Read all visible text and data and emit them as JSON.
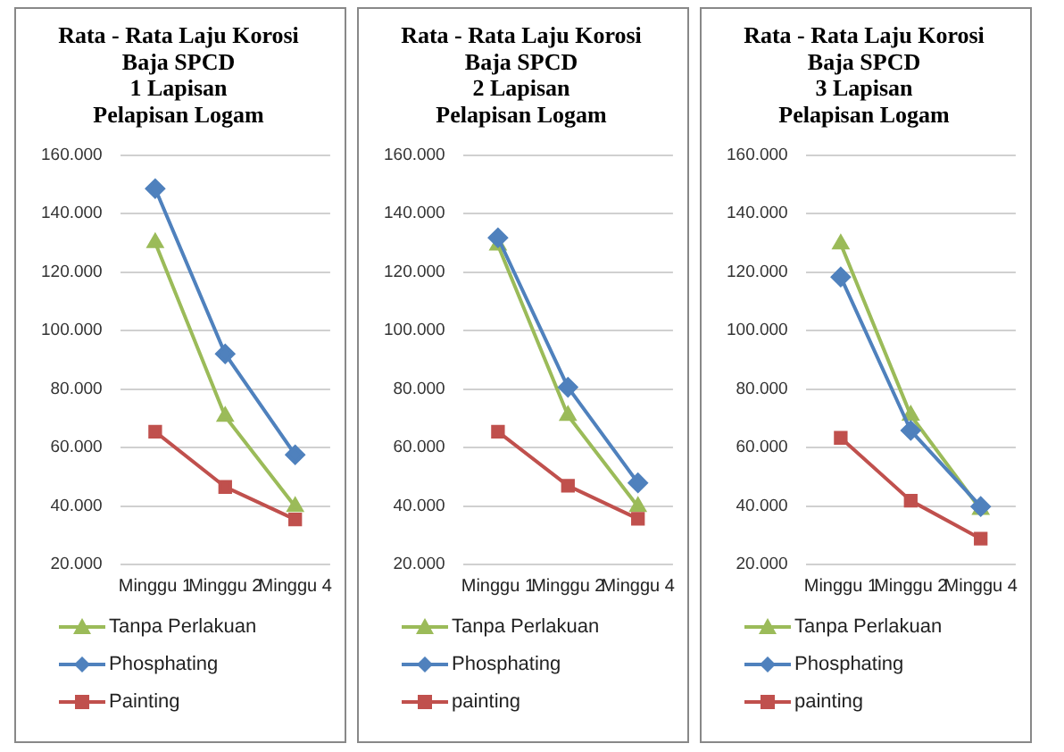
{
  "chart_data": [
    {
      "type": "line",
      "title": "Rata - Rata Laju Korosi\nBaja SPCD\n1 Lapisan\nPelapisan Logam",
      "categories": [
        "Minggu 1",
        "Minggu 2",
        "Minggu 4"
      ],
      "series": [
        {
          "name": "Tanpa Perlakuan",
          "color": "#9bbb59",
          "marker": "triangle",
          "values": [
            130,
            70.6,
            39.8
          ]
        },
        {
          "name": "Phosphating",
          "color": "#4f81bd",
          "marker": "diamond",
          "values": [
            148.5,
            92,
            57.5
          ]
        },
        {
          "name": "Painting",
          "color": "#c0504d",
          "marker": "square",
          "values": [
            65.4,
            46.5,
            35.4
          ]
        }
      ],
      "ylim": [
        20,
        160
      ],
      "yticks": [
        {
          "value": 20,
          "label": "20.000"
        },
        {
          "value": 40,
          "label": "40.000"
        },
        {
          "value": 60,
          "label": "60.000"
        },
        {
          "value": 80,
          "label": "80.000"
        },
        {
          "value": 100,
          "label": "100.000"
        },
        {
          "value": 120,
          "label": "120.000"
        },
        {
          "value": 140,
          "label": "140.000"
        },
        {
          "value": 160,
          "label": "160.000"
        }
      ],
      "grid": "y",
      "legend": "bottom"
    },
    {
      "type": "line",
      "title": "Rata - Rata Laju Korosi\nBaja SPCD\n2 Lapisan\nPelapisan Logam",
      "categories": [
        "Minggu 1",
        "Minggu 2",
        "Minggu 4"
      ],
      "series": [
        {
          "name": "Tanpa Perlakuan",
          "color": "#9bbb59",
          "marker": "triangle",
          "values": [
            129.2,
            70.9,
            39.8
          ]
        },
        {
          "name": "Phosphating",
          "color": "#4f81bd",
          "marker": "diamond",
          "values": [
            131.7,
            80.6,
            47.9
          ]
        },
        {
          "name": "painting",
          "color": "#c0504d",
          "marker": "square",
          "values": [
            65.4,
            46.9,
            35.6
          ]
        }
      ],
      "ylim": [
        20,
        160
      ],
      "yticks": [
        {
          "value": 20,
          "label": "20.000"
        },
        {
          "value": 40,
          "label": "40.000"
        },
        {
          "value": 60,
          "label": "60.000"
        },
        {
          "value": 80,
          "label": "80.000"
        },
        {
          "value": 100,
          "label": "100.000"
        },
        {
          "value": 120,
          "label": "120.000"
        },
        {
          "value": 140,
          "label": "140.000"
        },
        {
          "value": 160,
          "label": "160.000"
        }
      ],
      "grid": "y",
      "legend": "bottom"
    },
    {
      "type": "line",
      "title": "Rata - Rata Laju Korosi\nBaja SPCD\n3 Lapisan\nPelapisan Logam",
      "categories": [
        "Minggu 1",
        "Minggu 2",
        "Minggu 4"
      ],
      "series": [
        {
          "name": "Tanpa Perlakuan",
          "color": "#9bbb59",
          "marker": "triangle",
          "values": [
            129.6,
            71,
            38.8
          ]
        },
        {
          "name": "Phosphating",
          "color": "#4f81bd",
          "marker": "diamond",
          "values": [
            118.3,
            65.8,
            39.8
          ]
        },
        {
          "name": "painting",
          "color": "#c0504d",
          "marker": "square",
          "values": [
            63.3,
            41.8,
            28.8
          ]
        }
      ],
      "ylim": [
        20,
        160
      ],
      "yticks": [
        {
          "value": 20,
          "label": "20.000"
        },
        {
          "value": 40,
          "label": "40.000"
        },
        {
          "value": 60,
          "label": "60.000"
        },
        {
          "value": 80,
          "label": "80.000"
        },
        {
          "value": 100,
          "label": "100.000"
        },
        {
          "value": 120,
          "label": "120.000"
        },
        {
          "value": 140,
          "label": "140.000"
        },
        {
          "value": 160,
          "label": "160.000"
        }
      ],
      "grid": "y",
      "legend": "bottom"
    }
  ]
}
